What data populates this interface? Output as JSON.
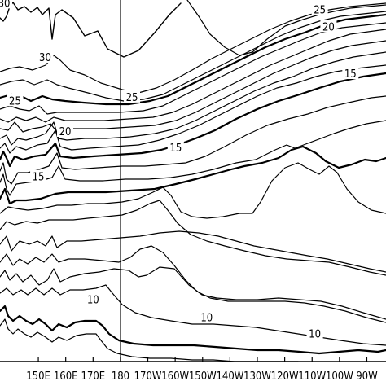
{
  "chart_data": {
    "type": "contour",
    "xlabel": "",
    "ylabel": "",
    "title": "",
    "x_tick_labels": [
      "150E",
      "160E",
      "170E",
      "180",
      "170W",
      "160W",
      "150W",
      "140W",
      "130W",
      "120W",
      "110W",
      "100W",
      "90W"
    ],
    "x_tick_values": [
      150,
      160,
      170,
      180,
      190,
      200,
      210,
      220,
      230,
      240,
      250,
      260,
      270
    ],
    "x_range": [
      136,
      277
    ],
    "y_range": [
      0,
      1
    ],
    "vertical_reference_line_at": 180,
    "contour_labels": [
      {
        "value": "30",
        "x": 152.5,
        "y": 0.84
      },
      {
        "value": "25",
        "x": 141.5,
        "y": 0.72
      },
      {
        "value": "25",
        "x": 184.2,
        "y": 0.73
      },
      {
        "value": "25",
        "x": 252.8,
        "y": 0.972
      },
      {
        "value": "20",
        "x": 159.8,
        "y": 0.635
      },
      {
        "value": "20",
        "x": 256.0,
        "y": 0.925
      },
      {
        "value": "15",
        "x": 150.0,
        "y": 0.51
      },
      {
        "value": "15",
        "x": 200.2,
        "y": 0.59
      },
      {
        "value": "15",
        "x": 264.0,
        "y": 0.795
      },
      {
        "value": "10",
        "x": 170.0,
        "y": 0.17
      },
      {
        "value": "10",
        "x": 211.5,
        "y": 0.12
      },
      {
        "value": "10",
        "x": 251.0,
        "y": 0.075
      },
      {
        "value": "30",
        "x": 137.5,
        "y": 0.99
      }
    ],
    "grid": false,
    "legend": "none"
  },
  "colors": {
    "lines": "#000000",
    "background": "#ffffff"
  }
}
